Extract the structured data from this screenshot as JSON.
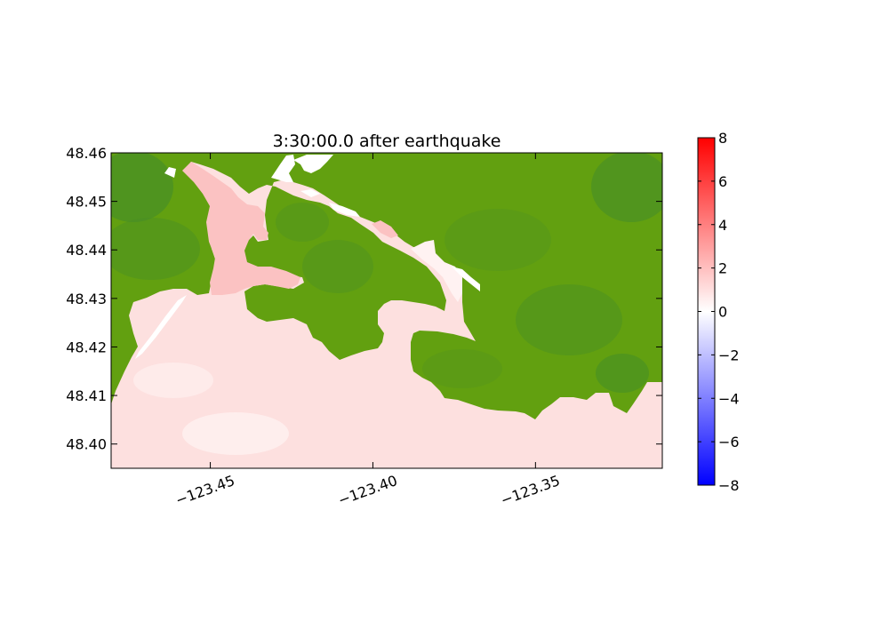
{
  "title": "3:30:00.0 after earthquake",
  "map": {
    "x_range": [
      -123.4805,
      -123.311
    ],
    "y_range": [
      48.395,
      48.46
    ],
    "x_ticks": [
      {
        "value": -123.45,
        "label": "−123.45"
      },
      {
        "value": -123.4,
        "label": "−123.40"
      },
      {
        "value": -123.35,
        "label": "−123.35"
      }
    ],
    "y_ticks": [
      {
        "value": 48.46,
        "label": "48.46"
      },
      {
        "value": 48.45,
        "label": "48.45"
      },
      {
        "value": 48.44,
        "label": "48.44"
      },
      {
        "value": 48.43,
        "label": "48.43"
      },
      {
        "value": 48.42,
        "label": "48.42"
      },
      {
        "value": 48.41,
        "label": "48.41"
      },
      {
        "value": 48.4,
        "label": "48.40"
      }
    ],
    "land_color": "#5f9e12",
    "water_color": "#fde0df",
    "harbour_color": "#fbc2c2"
  },
  "colorbar": {
    "range": [
      -8,
      8
    ],
    "ticks": [
      {
        "value": 8,
        "label": "8"
      },
      {
        "value": 6,
        "label": "6"
      },
      {
        "value": 4,
        "label": "4"
      },
      {
        "value": 2,
        "label": "2"
      },
      {
        "value": 0,
        "label": "0"
      },
      {
        "value": -2,
        "label": "−2"
      },
      {
        "value": -4,
        "label": "−4"
      },
      {
        "value": -6,
        "label": "−6"
      },
      {
        "value": -8,
        "label": "−8"
      }
    ],
    "colors": {
      "high": "#ff0000",
      "mid": "#ffffff",
      "low": "#0000ff"
    }
  }
}
